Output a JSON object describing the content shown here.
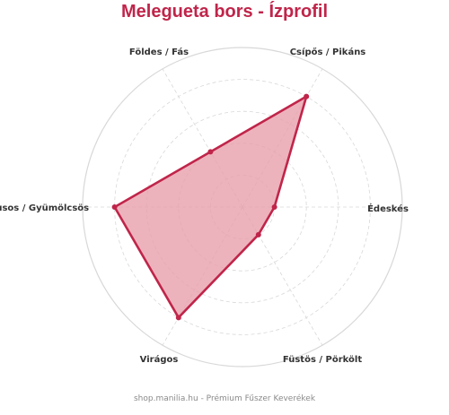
{
  "header": {
    "title": "Melegueta bors - Ízprofil"
  },
  "footer": {
    "text": "shop.manilia.hu - Prémium Fűszer Keverékek"
  },
  "colors": {
    "accent": "#c0254a",
    "fill": "#e8a0ad",
    "grid": "#d8d8d8",
    "title": "#c0254a"
  },
  "chart_data": {
    "type": "radar",
    "title": "Melegueta bors - Ízprofil",
    "categories": [
      "Édeskés",
      "Csípős / Pikáns",
      "Földes / Fás",
      "Citrusos / Gyümölcsös",
      "Virágos",
      "Füstös / Pörkölt"
    ],
    "series": [
      {
        "values": [
          1.0,
          4.0,
          2.0,
          4.0,
          4.0,
          1.0
        ]
      }
    ],
    "r_max": 5,
    "grid": true,
    "axis_angles_deg": [
      0,
      60,
      120,
      180,
      240,
      300
    ],
    "rings": 5
  }
}
